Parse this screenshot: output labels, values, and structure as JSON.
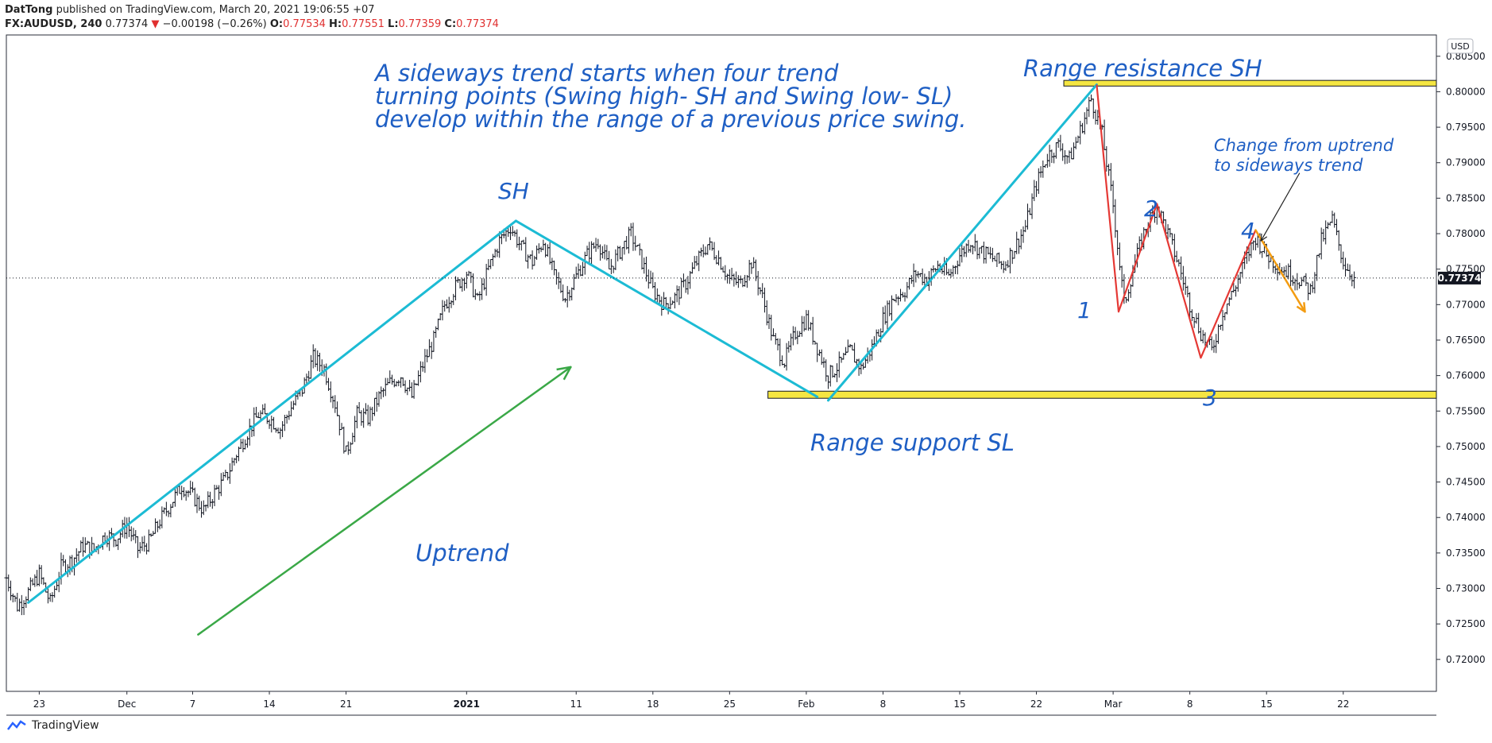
{
  "header": {
    "publisher": "DatTong",
    "published_text": "published on TradingView.com, March 20, 2021 19:06:55 +07",
    "symbol": "FX:AUDUSD, 240",
    "last": "0.77374",
    "change": "−0.00198 (−0.26%)",
    "o_label": "O:",
    "o_value": "0.77534",
    "h_label": "H:",
    "h_value": "0.77551",
    "l_label": "L:",
    "l_value": "0.77359",
    "c_label": "C:",
    "c_value": "0.77374"
  },
  "footer": {
    "brand": "TradingView"
  },
  "colors": {
    "trendline": "#1cbbd4",
    "uptrend_arrow": "#3aa847",
    "zigzag": "#e53935",
    "orange": "#f39c12",
    "range_band": "#f5e642",
    "annotation": "#1f5fc4",
    "price_tag": "#131722"
  },
  "chart_data": {
    "type": "candlestick",
    "title": "",
    "xlabel": "",
    "ylabel": "",
    "currency_badge": "USD",
    "current_price": "0.77374",
    "y_axis": {
      "range": [
        0.7155,
        0.808
      ],
      "ticks": [
        "0.80500",
        "0.80000",
        "0.79500",
        "0.79000",
        "0.78500",
        "0.78000",
        "0.77500",
        "0.77000",
        "0.76500",
        "0.76000",
        "0.75500",
        "0.75000",
        "0.74500",
        "0.74000",
        "0.73500",
        "0.73000",
        "0.72500",
        "0.72000"
      ]
    },
    "x_axis": {
      "ticks": [
        {
          "label": "23",
          "day": 0,
          "bold": false
        },
        {
          "label": "Dec",
          "day": 8,
          "bold": false
        },
        {
          "label": "7",
          "day": 14,
          "bold": false
        },
        {
          "label": "14",
          "day": 21,
          "bold": false
        },
        {
          "label": "21",
          "day": 28,
          "bold": false
        },
        {
          "label": "2021",
          "day": 39,
          "bold": true
        },
        {
          "label": "11",
          "day": 49,
          "bold": false
        },
        {
          "label": "18",
          "day": 56,
          "bold": false
        },
        {
          "label": "25",
          "day": 63,
          "bold": false
        },
        {
          "label": "Feb",
          "day": 70,
          "bold": false
        },
        {
          "label": "8",
          "day": 77,
          "bold": false
        },
        {
          "label": "15",
          "day": 84,
          "bold": false
        },
        {
          "label": "22",
          "day": 91,
          "bold": false
        },
        {
          "label": "Mar",
          "day": 98,
          "bold": false
        },
        {
          "label": "8",
          "day": 105,
          "bold": false
        },
        {
          "label": "15",
          "day": 112,
          "bold": false
        },
        {
          "label": "22",
          "day": 119,
          "bold": false
        }
      ],
      "day_range": [
        -3,
        127.5
      ]
    },
    "price_path": [
      {
        "day": -3,
        "price": 0.7315
      },
      {
        "day": -2,
        "price": 0.7275
      },
      {
        "day": -1,
        "price": 0.7295
      },
      {
        "day": 0,
        "price": 0.732
      },
      {
        "day": 1,
        "price": 0.728
      },
      {
        "day": 2,
        "price": 0.733
      },
      {
        "day": 3,
        "price": 0.734
      },
      {
        "day": 4,
        "price": 0.736
      },
      {
        "day": 5,
        "price": 0.7355
      },
      {
        "day": 6,
        "price": 0.7375
      },
      {
        "day": 7,
        "price": 0.737
      },
      {
        "day": 8,
        "price": 0.739
      },
      {
        "day": 9,
        "price": 0.7355
      },
      {
        "day": 10,
        "price": 0.7365
      },
      {
        "day": 11,
        "price": 0.7395
      },
      {
        "day": 12,
        "price": 0.742
      },
      {
        "day": 13,
        "price": 0.7445
      },
      {
        "day": 14,
        "price": 0.743
      },
      {
        "day": 15,
        "price": 0.741
      },
      {
        "day": 16,
        "price": 0.7435
      },
      {
        "day": 17,
        "price": 0.7455
      },
      {
        "day": 18,
        "price": 0.749
      },
      {
        "day": 19,
        "price": 0.752
      },
      {
        "day": 20,
        "price": 0.7545
      },
      {
        "day": 21,
        "price": 0.754
      },
      {
        "day": 22,
        "price": 0.7525
      },
      {
        "day": 23,
        "price": 0.7555
      },
      {
        "day": 24,
        "price": 0.758
      },
      {
        "day": 25,
        "price": 0.7625
      },
      {
        "day": 26,
        "price": 0.761
      },
      {
        "day": 27,
        "price": 0.756
      },
      {
        "day": 28,
        "price": 0.749
      },
      {
        "day": 29,
        "price": 0.7545
      },
      {
        "day": 30,
        "price": 0.754
      },
      {
        "day": 31,
        "price": 0.757
      },
      {
        "day": 32,
        "price": 0.759
      },
      {
        "day": 33,
        "price": 0.76
      },
      {
        "day": 34,
        "price": 0.757
      },
      {
        "day": 35,
        "price": 0.7615
      },
      {
        "day": 36,
        "price": 0.765
      },
      {
        "day": 37,
        "price": 0.77
      },
      {
        "day": 38,
        "price": 0.7725
      },
      {
        "day": 39,
        "price": 0.7745
      },
      {
        "day": 40,
        "price": 0.7705
      },
      {
        "day": 41,
        "price": 0.775
      },
      {
        "day": 42,
        "price": 0.779
      },
      {
        "day": 43,
        "price": 0.781
      },
      {
        "day": 44,
        "price": 0.778
      },
      {
        "day": 45,
        "price": 0.776
      },
      {
        "day": 46,
        "price": 0.779
      },
      {
        "day": 47,
        "price": 0.774
      },
      {
        "day": 48,
        "price": 0.771
      },
      {
        "day": 49,
        "price": 0.774
      },
      {
        "day": 50,
        "price": 0.777
      },
      {
        "day": 51,
        "price": 0.779
      },
      {
        "day": 52,
        "price": 0.775
      },
      {
        "day": 53,
        "price": 0.7775
      },
      {
        "day": 54,
        "price": 0.78
      },
      {
        "day": 55,
        "price": 0.776
      },
      {
        "day": 56,
        "price": 0.772
      },
      {
        "day": 57,
        "price": 0.77
      },
      {
        "day": 58,
        "price": 0.771
      },
      {
        "day": 59,
        "price": 0.773
      },
      {
        "day": 60,
        "price": 0.776
      },
      {
        "day": 61,
        "price": 0.7785
      },
      {
        "day": 62,
        "price": 0.7765
      },
      {
        "day": 63,
        "price": 0.7735
      },
      {
        "day": 64,
        "price": 0.773
      },
      {
        "day": 65,
        "price": 0.776
      },
      {
        "day": 66,
        "price": 0.771
      },
      {
        "day": 67,
        "price": 0.765
      },
      {
        "day": 68,
        "price": 0.762
      },
      {
        "day": 69,
        "price": 0.766
      },
      {
        "day": 70,
        "price": 0.768
      },
      {
        "day": 71,
        "price": 0.764
      },
      {
        "day": 72,
        "price": 0.76
      },
      {
        "day": 73,
        "price": 0.7615
      },
      {
        "day": 74,
        "price": 0.7635
      },
      {
        "day": 75,
        "price": 0.761
      },
      {
        "day": 76,
        "price": 0.764
      },
      {
        "day": 77,
        "price": 0.768
      },
      {
        "day": 78,
        "price": 0.771
      },
      {
        "day": 79,
        "price": 0.772
      },
      {
        "day": 80,
        "price": 0.7745
      },
      {
        "day": 81,
        "price": 0.7735
      },
      {
        "day": 82,
        "price": 0.7755
      },
      {
        "day": 83,
        "price": 0.774
      },
      {
        "day": 84,
        "price": 0.777
      },
      {
        "day": 85,
        "price": 0.779
      },
      {
        "day": 86,
        "price": 0.7775
      },
      {
        "day": 87,
        "price": 0.7765
      },
      {
        "day": 88,
        "price": 0.7755
      },
      {
        "day": 89,
        "price": 0.778
      },
      {
        "day": 90,
        "price": 0.781
      },
      {
        "day": 91,
        "price": 0.787
      },
      {
        "day": 92,
        "price": 0.791
      },
      {
        "day": 93,
        "price": 0.7925
      },
      {
        "day": 94,
        "price": 0.7905
      },
      {
        "day": 95,
        "price": 0.7945
      },
      {
        "day": 96,
        "price": 0.799
      },
      {
        "day": 97,
        "price": 0.794
      },
      {
        "day": 98,
        "price": 0.784
      },
      {
        "day": 99,
        "price": 0.77
      },
      {
        "day": 100,
        "price": 0.776
      },
      {
        "day": 101,
        "price": 0.781
      },
      {
        "day": 102,
        "price": 0.784
      },
      {
        "day": 103,
        "price": 0.78
      },
      {
        "day": 104,
        "price": 0.7755
      },
      {
        "day": 105,
        "price": 0.77
      },
      {
        "day": 106,
        "price": 0.766
      },
      {
        "day": 107,
        "price": 0.7635
      },
      {
        "day": 108,
        "price": 0.769
      },
      {
        "day": 109,
        "price": 0.772
      },
      {
        "day": 110,
        "price": 0.776
      },
      {
        "day": 111,
        "price": 0.7795
      },
      {
        "day": 112,
        "price": 0.777
      },
      {
        "day": 113,
        "price": 0.7755
      },
      {
        "day": 114,
        "price": 0.7745
      },
      {
        "day": 115,
        "price": 0.7735
      },
      {
        "day": 116,
        "price": 0.772
      },
      {
        "day": 117,
        "price": 0.779
      },
      {
        "day": 118,
        "price": 0.782
      },
      {
        "day": 119,
        "price": 0.776
      },
      {
        "day": 120,
        "price": 0.7737
      }
    ],
    "annotations": {
      "description": [
        "A sideways trend starts when four trend",
        "turning points (Swing high- SH and Swing low- SL)",
        "develop within the range of a previous price swing."
      ],
      "sh": "SH",
      "uptrend": "Uptrend",
      "range_resistance": "Range resistance SH",
      "range_support": "Range support SL",
      "change_note": [
        "Change from uptrend",
        "to sideways trend"
      ],
      "point_1": "1",
      "point_2": "2",
      "point_3": "3",
      "point_4": "4"
    },
    "resistance_band": {
      "low": 0.8008,
      "high": 0.8016,
      "from_day": 93.5
    },
    "support_band": {
      "low": 0.7568,
      "high": 0.7578,
      "from_day": 66.5
    },
    "trendlines": [
      {
        "from": {
          "day": -1,
          "price": 0.728
        },
        "to": {
          "day": 43.5,
          "price": 0.7818
        }
      },
      {
        "from": {
          "day": 43.5,
          "price": 0.7818
        },
        "to": {
          "day": 71,
          "price": 0.757
        }
      },
      {
        "from": {
          "day": 72,
          "price": 0.7565
        },
        "to": {
          "day": 96.5,
          "price": 0.801
        }
      }
    ],
    "zigzag": [
      {
        "day": 96.5,
        "price": 0.801
      },
      {
        "day": 98.5,
        "price": 0.769
      },
      {
        "day": 102,
        "price": 0.7842
      },
      {
        "day": 106,
        "price": 0.7625
      },
      {
        "day": 111,
        "price": 0.7805
      }
    ],
    "orange_arrow": {
      "from": {
        "day": 111,
        "price": 0.7805
      },
      "to": {
        "day": 115.5,
        "price": 0.769
      }
    },
    "uptrend_arrow": {
      "from": {
        "day": 14.5,
        "price": 0.7235
      },
      "to": {
        "day": 48.5,
        "price": 0.7612
      }
    },
    "note_pointer": {
      "from": {
        "day": 115,
        "price": 0.7885
      },
      "to": {
        "day": 111.5,
        "price": 0.779
      }
    }
  }
}
